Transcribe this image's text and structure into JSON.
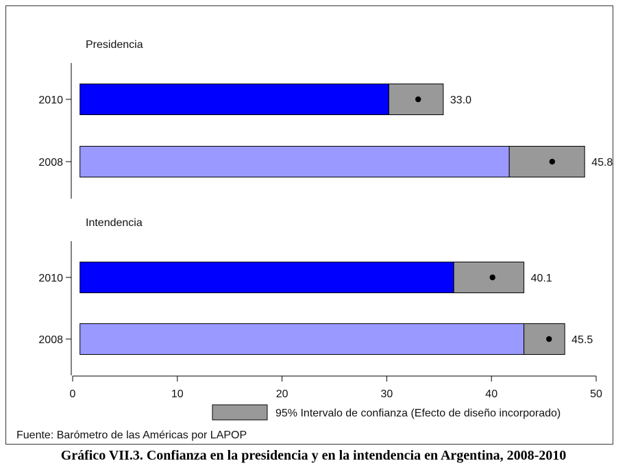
{
  "chart_data": {
    "type": "bar",
    "orientation": "horizontal",
    "groups": [
      {
        "title": "Presidencia",
        "bars": [
          {
            "year": "2010",
            "value": 33.0,
            "label": "33.0",
            "ci_low": 30.2,
            "ci_high": 35.4
          },
          {
            "year": "2008",
            "value": 45.8,
            "label": "45.8",
            "ci_low": 41.7,
            "ci_high": 48.9
          }
        ]
      },
      {
        "title": "Intendencia",
        "bars": [
          {
            "year": "2010",
            "value": 40.1,
            "label": "40.1",
            "ci_low": 36.4,
            "ci_high": 43.1
          },
          {
            "year": "2008",
            "value": 45.5,
            "label": "45.5",
            "ci_low": 43.1,
            "ci_high": 47.0
          }
        ]
      }
    ],
    "xlim": [
      0,
      50
    ],
    "xticks": [
      "0",
      "10",
      "20",
      "30",
      "40",
      "50"
    ],
    "legend": {
      "label": "95% Intervalo de confianza (Efecto de diseño incorporado)",
      "placement": "bottom"
    },
    "colors": {
      "2010": "#0000ff",
      "2008": "#9999ff",
      "ci": "#999999",
      "point": "#000000"
    }
  },
  "source": "Fuente: Barómetro de las Américas por LAPOP",
  "caption": "Gráfico VII.3. Confianza en la presidencia y en la intendencia en Argentina, 2008-2010"
}
